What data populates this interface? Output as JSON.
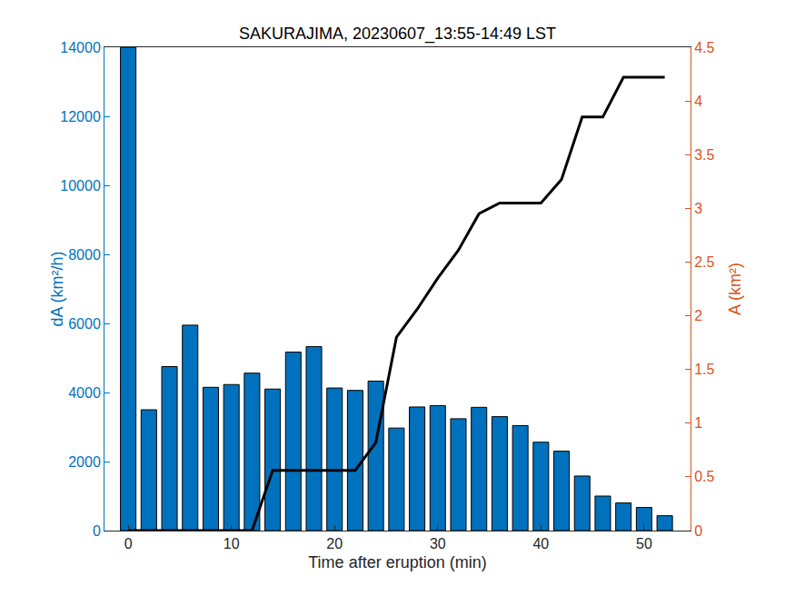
{
  "chart_data": {
    "type": "bar",
    "title": "SAKURAJIMA, 20230607_13:55-14:49 LST",
    "x_label": "Time after eruption (min)",
    "y_label": "dA (km²/h)",
    "y2_label": "A (km²)",
    "x": [
      0,
      2,
      4,
      6,
      8,
      10,
      12,
      14,
      16,
      18,
      20,
      22,
      24,
      26,
      28,
      30,
      32,
      34,
      36,
      38,
      40,
      42,
      44,
      46,
      48,
      50,
      52
    ],
    "series": [
      {
        "name": "dA",
        "type": "bar",
        "color": "#0072BD",
        "values": [
          14000,
          3500,
          4750,
          5950,
          4150,
          4230,
          4560,
          4100,
          5170,
          5330,
          4130,
          4060,
          4330,
          2970,
          3580,
          3620,
          3240,
          3570,
          3300,
          3040,
          2560,
          2300,
          1580,
          1000,
          800,
          670,
          430
        ]
      },
      {
        "name": "A",
        "type": "line",
        "axis": "y2",
        "color": "#000000",
        "line_style": "solid",
        "values": [
          0,
          0,
          0,
          0,
          0,
          0,
          0,
          0.56,
          0.56,
          0.56,
          0.56,
          0.56,
          0.82,
          1.8,
          2.06,
          2.35,
          2.61,
          2.95,
          3.05,
          3.05,
          3.05,
          3.27,
          3.85,
          3.85,
          4.22,
          4.22,
          4.22
        ]
      }
    ],
    "xlim": [
      -2.3,
      54.5
    ],
    "xticks": [
      0,
      10,
      20,
      30,
      40,
      50
    ],
    "ylim": [
      0,
      14000
    ],
    "yticks": [
      0,
      2000,
      4000,
      6000,
      8000,
      10000,
      12000,
      14000
    ],
    "y2lim": [
      0,
      4.5
    ],
    "y2ticks": [
      0,
      0.5,
      1,
      1.5,
      2,
      2.5,
      3,
      3.5,
      4,
      4.5
    ],
    "y_color": "#0072BD",
    "y2_color": "#D95319",
    "grid": false
  }
}
